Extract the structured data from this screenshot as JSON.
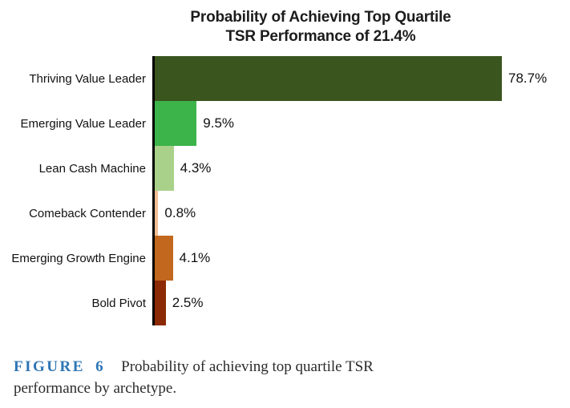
{
  "title": {
    "line1": "Probability of Achieving Top Quartile",
    "line2": "TSR Performance of 21.4%"
  },
  "chart_data": {
    "type": "bar",
    "orientation": "horizontal",
    "title": "Probability of Achieving Top Quartile TSR Performance of 21.4%",
    "categories": [
      "Thriving Value Leader",
      "Emerging Value Leader",
      "Lean Cash Machine",
      "Comeback Contender",
      "Emerging Growth Engine",
      "Bold Pivot"
    ],
    "values": [
      78.7,
      9.5,
      4.3,
      0.8,
      4.1,
      2.5
    ],
    "value_labels": [
      "78.7%",
      "9.5%",
      "4.3%",
      "0.8%",
      "4.1%",
      "2.5%"
    ],
    "bar_colors": [
      "#3B551F",
      "#3CB44A",
      "#A9D189",
      "#F0BD93",
      "#C1671E",
      "#8B2A04"
    ],
    "xlim": [
      0,
      100
    ],
    "grid": false,
    "legend": false,
    "axis_color": "#000000"
  },
  "caption": {
    "label": "FIGURE 6",
    "label_color": "#2E75B5",
    "text": "Probability of achieving top quartile TSR performance by archetype."
  }
}
